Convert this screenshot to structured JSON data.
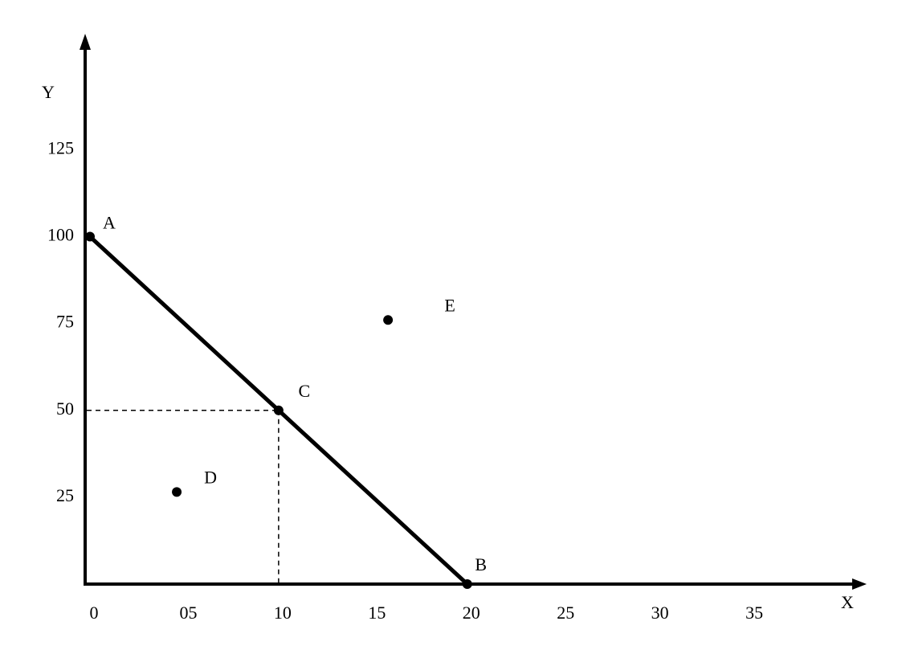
{
  "chart_data": {
    "type": "scatter",
    "x_label": "X",
    "y_label": "Y",
    "xlim": [
      0,
      41
    ],
    "ylim": [
      0,
      157
    ],
    "xticks": [
      0,
      {
        "value": 5,
        "label": "05"
      },
      10,
      15,
      20,
      25,
      30,
      35
    ],
    "yticks": [
      25,
      50,
      75,
      100,
      125
    ],
    "color": "#000000",
    "frontier": [
      {
        "label": "A",
        "x": 0,
        "y": 100
      },
      {
        "label": "C",
        "x": 10,
        "y": 50,
        "dashed_guides": true
      },
      {
        "label": "B",
        "x": 20,
        "y": 0
      }
    ],
    "other_points": [
      {
        "label": "D",
        "x": 4.6,
        "y": 26.5
      },
      {
        "label": "E",
        "x": 15.8,
        "y": 76
      }
    ]
  }
}
